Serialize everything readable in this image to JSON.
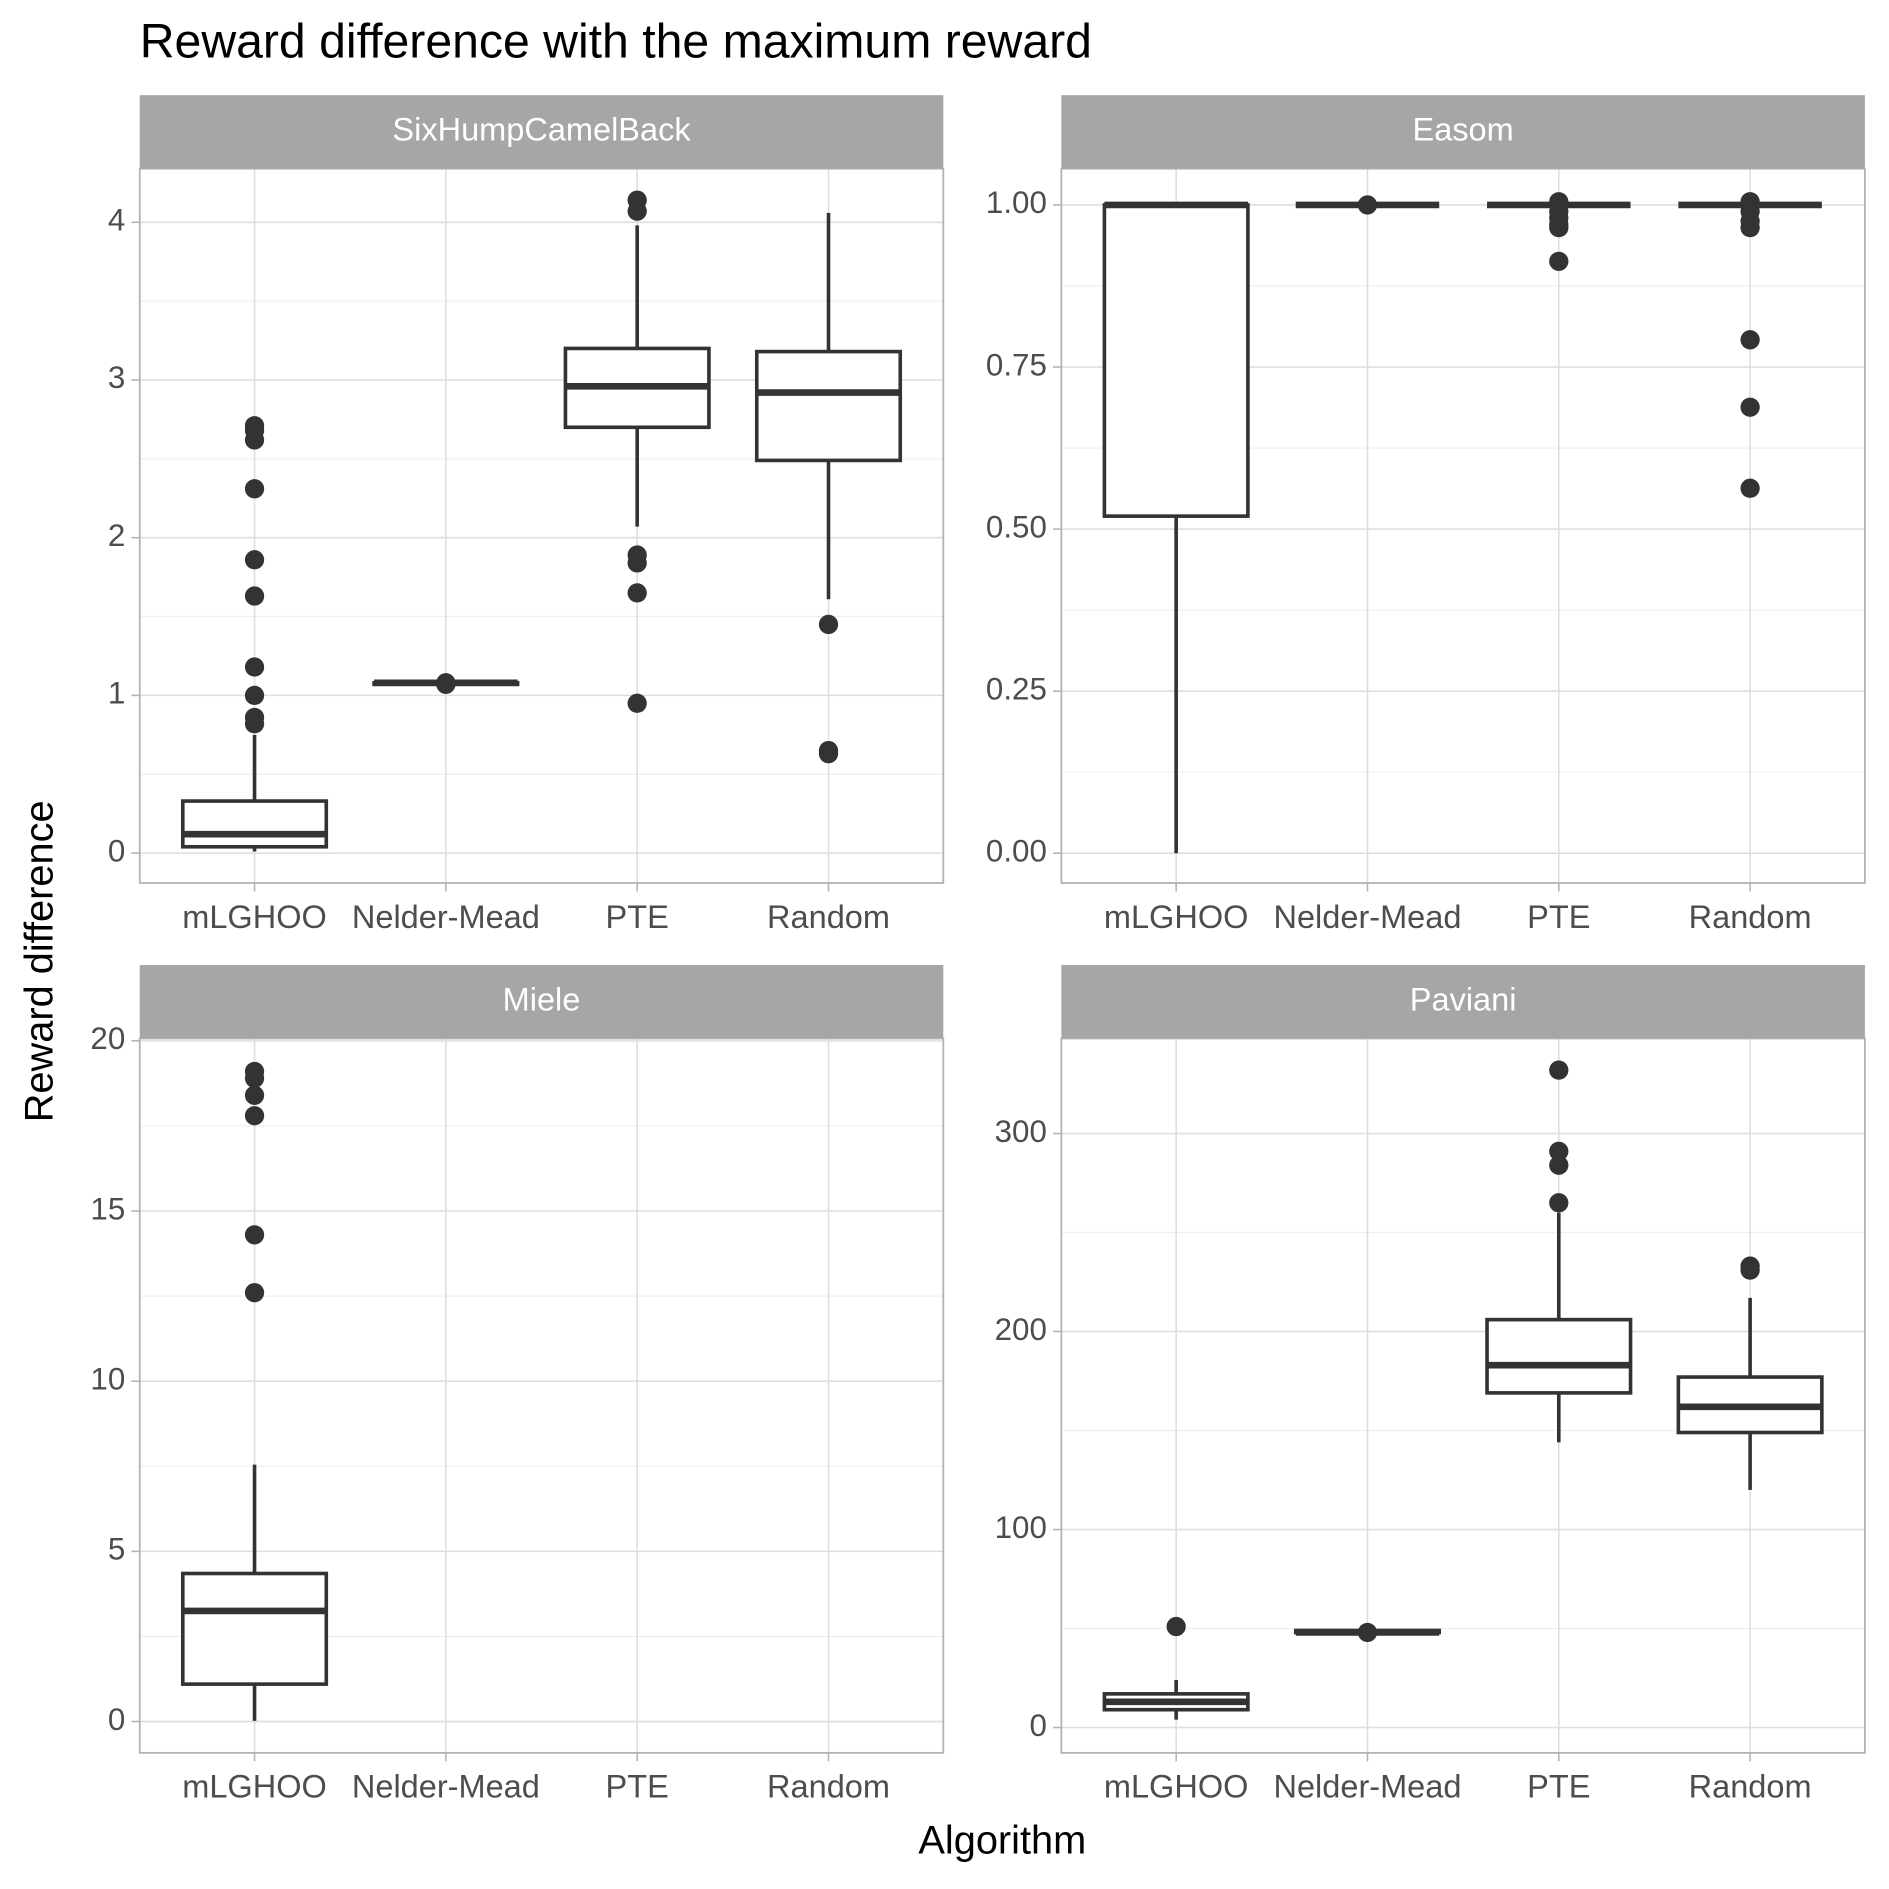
{
  "title": "Reward difference with the maximum reward",
  "x_label": "Algorithm",
  "y_label": "Reward difference",
  "chart_data": [
    {
      "type": "box",
      "title": "SixHumpCamelBack",
      "categories": [
        "mLGHOO",
        "Nelder-Mead",
        "PTE",
        "Random"
      ],
      "min": [
        0.01,
        1.06,
        2.07,
        1.61
      ],
      "q1": [
        0.04,
        1.07,
        2.7,
        2.49
      ],
      "median": [
        0.12,
        1.08,
        2.96,
        2.92
      ],
      "q3": [
        0.33,
        1.08,
        3.2,
        3.18
      ],
      "max": [
        0.75,
        1.09,
        3.98,
        4.06
      ],
      "outliers": [
        [
          2.71,
          2.68,
          2.62,
          2.31,
          1.86,
          1.63,
          1.18,
          1.0,
          0.86,
          0.82
        ],
        [
          1.08,
          1.07
        ],
        [
          4.14,
          4.07,
          1.89,
          1.84,
          1.65,
          0.95
        ],
        [
          1.45,
          0.65,
          0.63
        ]
      ],
      "ylim": [
        -0.19,
        4.34
      ],
      "yticks": [
        0,
        1,
        2,
        3,
        4
      ],
      "grid": true,
      "color": "#ffffff",
      "line_color": "#333333"
    },
    {
      "type": "box",
      "title": "Easom",
      "categories": [
        "mLGHOO",
        "Nelder-Mead",
        "PTE",
        "Random"
      ],
      "min": [
        0,
        1,
        1,
        1
      ],
      "q1": [
        0.52,
        1,
        1,
        1
      ],
      "median": [
        1,
        1,
        1,
        1
      ],
      "q3": [
        1,
        1,
        1,
        1
      ],
      "max": [
        1,
        1,
        1,
        1
      ],
      "outliers": [
        [],
        [
          1.0
        ],
        [
          1.005,
          0.99,
          0.98,
          0.97,
          0.965,
          0.913
        ],
        [
          1.005,
          0.99,
          0.975,
          0.965,
          0.792,
          0.688,
          0.563
        ]
      ],
      "ylim": [
        -0.046,
        1.056
      ],
      "yticks": [
        {
          "value": 0,
          "label": "0.00"
        },
        {
          "value": 0.25,
          "label": "0.25"
        },
        {
          "value": 0.5,
          "label": "0.50"
        },
        {
          "value": 0.75,
          "label": "0.75"
        },
        {
          "value": 1,
          "label": "1.00"
        }
      ],
      "grid": true,
      "color": "#ffffff",
      "line_color": "#333333"
    },
    {
      "type": "box",
      "title": "Miele",
      "categories": [
        "mLGHOO",
        "Nelder-Mead",
        "PTE",
        "Random"
      ],
      "min": [
        0.02,
        null,
        null,
        null
      ],
      "q1": [
        1.1,
        null,
        null,
        null
      ],
      "median": [
        3.25,
        null,
        null,
        null
      ],
      "q3": [
        4.35,
        null,
        null,
        null
      ],
      "max": [
        7.55,
        null,
        null,
        null
      ],
      "outliers": [
        [
          19.1,
          18.9,
          18.4,
          17.8,
          14.3,
          12.6
        ],
        [],
        [],
        []
      ],
      "ylim": [
        -0.92,
        20.07
      ],
      "yticks": [
        0,
        5,
        10,
        15,
        20
      ],
      "grid": true,
      "color": "#ffffff",
      "line_color": "#333333"
    },
    {
      "type": "box",
      "title": "Paviani",
      "categories": [
        "mLGHOO",
        "Nelder-Mead",
        "PTE",
        "Random"
      ],
      "min": [
        4,
        47,
        144,
        120
      ],
      "q1": [
        9,
        48,
        169,
        149
      ],
      "median": [
        13,
        48,
        183,
        162
      ],
      "q3": [
        17,
        49,
        206,
        177
      ],
      "max": [
        24,
        49,
        260,
        217
      ],
      "outliers": [
        [
          51
        ],
        [
          48
        ],
        [
          332,
          291,
          284,
          265
        ],
        [
          233,
          231
        ]
      ],
      "ylim": [
        -12.8,
        348
      ],
      "yticks": [
        0,
        100,
        200,
        300
      ],
      "grid": true,
      "color": "#ffffff",
      "line_color": "#333333"
    }
  ]
}
